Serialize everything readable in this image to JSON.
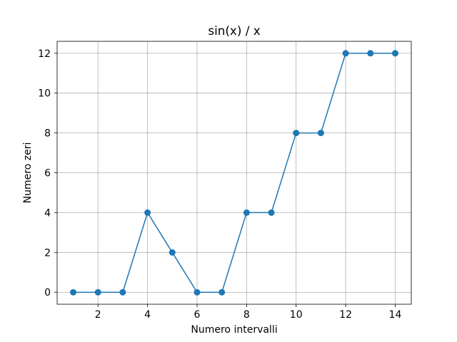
{
  "chart_data": {
    "type": "line",
    "title": "sin(x) / x",
    "xlabel": "Numero intervalli",
    "ylabel": "Numero zeri",
    "x": [
      1,
      2,
      3,
      4,
      5,
      6,
      7,
      8,
      9,
      10,
      11,
      12,
      13,
      14
    ],
    "series": [
      {
        "values": [
          0,
          0,
          0,
          4,
          2,
          0,
          0,
          4,
          4,
          8,
          8,
          12,
          12,
          12
        ],
        "color": "#1f77b4",
        "marker": "circle"
      }
    ],
    "xlim": [
      0.35,
      14.65
    ],
    "ylim": [
      -0.6,
      12.6
    ],
    "xticks": [
      2,
      4,
      6,
      8,
      10,
      12,
      14
    ],
    "yticks": [
      0,
      2,
      4,
      6,
      8,
      10,
      12
    ],
    "grid": true,
    "legend": "none"
  }
}
